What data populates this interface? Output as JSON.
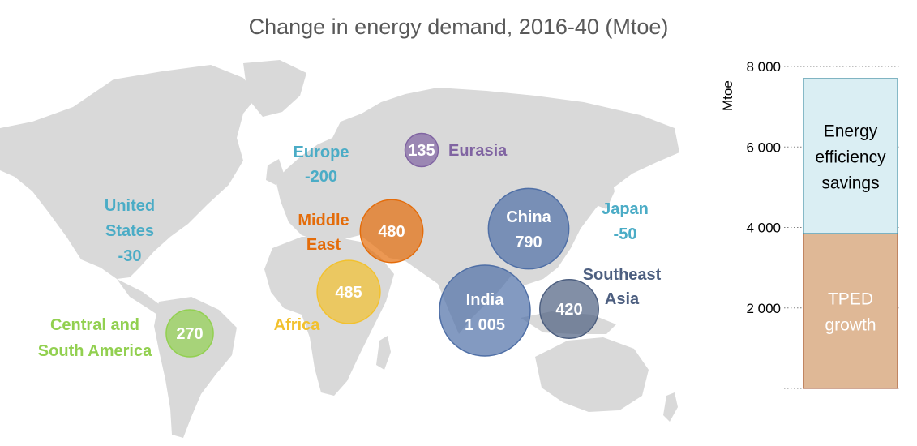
{
  "title": "Change in energy demand, 2016-40 (Mtoe)",
  "colors": {
    "land": "#d9d9d9",
    "europe": "#4bacc6",
    "united_states": "#4bacc6",
    "japan": "#4bacc6",
    "eurasia": "#8064a2",
    "middle_east": "#e46c0a",
    "africa": "#f2c12e",
    "central_south_america": "#92d050",
    "china": "#4f6fa6",
    "india": "#4f6fa6",
    "southeast_asia": "#4d5f80",
    "efficiency_fill": "#daeef3",
    "efficiency_border": "#31849b",
    "tped_fill": "#dfb896",
    "tped_border": "#a0522d"
  },
  "chart_data": [
    {
      "type": "bubble-map",
      "regions": [
        {
          "name": "Eurasia",
          "label_lines": [
            "Eurasia"
          ],
          "value_text": "135",
          "value": 135,
          "color": "#8064a2"
        },
        {
          "name": "Europe",
          "label_lines": [
            "Europe",
            "-200"
          ],
          "value_text": "",
          "value": -200,
          "color": "#4bacc6"
        },
        {
          "name": "United States",
          "label_lines": [
            "United",
            "States",
            "-30"
          ],
          "value_text": "",
          "value": -30,
          "color": "#4bacc6"
        },
        {
          "name": "Japan",
          "label_lines": [
            "Japan",
            "-50"
          ],
          "value_text": "",
          "value": -50,
          "color": "#4bacc6"
        },
        {
          "name": "Middle East",
          "label_lines": [
            "Middle",
            "East"
          ],
          "value_text": "480",
          "value": 480,
          "color": "#e46c0a"
        },
        {
          "name": "China",
          "label_lines": [
            "China",
            "790"
          ],
          "value_text": "",
          "value": 790,
          "color": "#4f6fa6"
        },
        {
          "name": "India",
          "label_lines": [
            "India",
            "1 005"
          ],
          "value_text": "",
          "value": 1005,
          "color": "#4f6fa6"
        },
        {
          "name": "Southeast Asia",
          "label_lines": [
            "Southeast",
            "Asia"
          ],
          "value_text": "420",
          "value": 420,
          "color": "#4d5f80"
        },
        {
          "name": "Africa",
          "label_lines": [
            "Africa"
          ],
          "value_text": "485",
          "value": 485,
          "color": "#f2c12e"
        },
        {
          "name": "Central and South America",
          "label_lines": [
            "Central and",
            "South America"
          ],
          "value_text": "270",
          "value": 270,
          "color": "#92d050"
        }
      ]
    },
    {
      "type": "bar",
      "stacked": true,
      "ylabel": "Mtoe",
      "ylim": [
        0,
        8000
      ],
      "yticks": [
        2000,
        4000,
        6000,
        8000
      ],
      "tick_labels": [
        "2 000",
        "4 000",
        "6 000",
        "8 000"
      ],
      "grid": "dotted",
      "series": [
        {
          "name": "TPED growth",
          "label_lines": [
            "TPED",
            "growth"
          ],
          "value": 3850
        },
        {
          "name": "Energy efficiency savings",
          "label_lines": [
            "Energy",
            "efficiency",
            "savings"
          ],
          "value": 3850
        }
      ]
    }
  ]
}
